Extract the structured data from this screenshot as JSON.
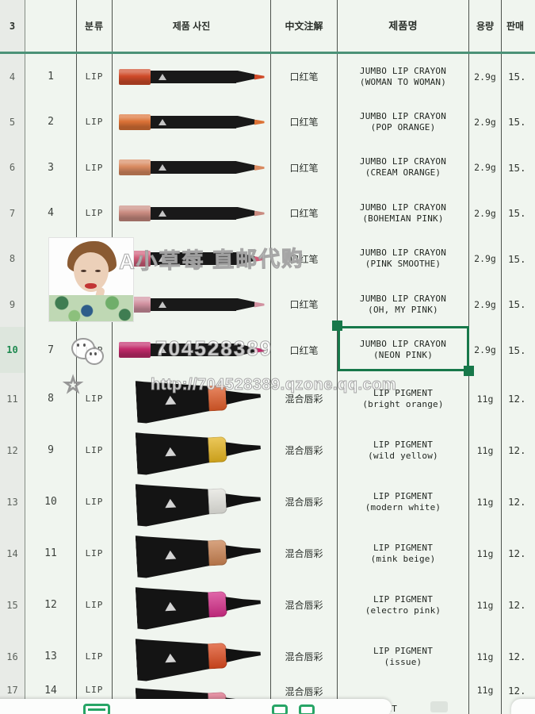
{
  "header": {
    "row_label": "3",
    "cols": {
      "index": "",
      "category": "분류",
      "photo": "제품 사진",
      "chinese_note": "中文注解",
      "product_name": "제품명",
      "weight": "용량",
      "price": "판매"
    }
  },
  "rows": [
    {
      "sheet_row": "4",
      "num": "1",
      "cat": "LIP",
      "img": "crayon",
      "color": "#cf4a28",
      "cn": "口红笔",
      "name1": "JUMBO LIP CRAYON",
      "name2": "(WOMAN TO WOMAN)",
      "weight": "2.9g",
      "price": "15."
    },
    {
      "sheet_row": "5",
      "num": "2",
      "cat": "LIP",
      "img": "crayon",
      "color": "#dc7236",
      "cn": "口红笔",
      "name1": "JUMBO LIP CRAYON",
      "name2": "(POP ORANGE)",
      "weight": "2.9g",
      "price": "15."
    },
    {
      "sheet_row": "6",
      "num": "3",
      "cat": "LIP",
      "img": "crayon",
      "color": "#d98a60",
      "cn": "口红笔",
      "name1": "JUMBO LIP CRAYON",
      "name2": "(CREAM ORANGE)",
      "weight": "2.9g",
      "price": "15."
    },
    {
      "sheet_row": "7",
      "num": "4",
      "cat": "LIP",
      "img": "crayon",
      "color": "#c98b80",
      "cn": "口红笔",
      "name1": "JUMBO LIP CRAYON",
      "name2": "(BOHEMIAN PINK)",
      "weight": "2.9g",
      "price": "15."
    },
    {
      "sheet_row": "8",
      "num": "5",
      "cat": "LIP",
      "img": "crayon",
      "color": "#d05c78",
      "cn": "口红笔",
      "name1": "JUMBO LIP CRAYON",
      "name2": "(PINK SMOOTHE)",
      "weight": "2.9g",
      "price": "15."
    },
    {
      "sheet_row": "9",
      "num": "6",
      "cat": "LIP",
      "img": "crayon",
      "color": "#d191a0",
      "cn": "口红笔",
      "name1": "JUMBO LIP CRAYON",
      "name2": "(OH, MY PINK)",
      "weight": "2.9g",
      "price": "15."
    },
    {
      "sheet_row": "10",
      "num": "7",
      "cat": "LIP",
      "img": "crayon",
      "color": "#c22a6a",
      "cn": "口红笔",
      "name1": "JUMBO LIP CRAYON",
      "name2": "(NEON PINK)",
      "weight": "2.9g",
      "price": "15.",
      "selected": true
    },
    {
      "sheet_row": "11",
      "num": "8",
      "cat": "LIP",
      "img": "tube",
      "color": "#df5a27",
      "cn": "混合唇彩",
      "name1": "LIP PIGMENT",
      "name2": "(bright orange)",
      "weight": "11g",
      "price": "12."
    },
    {
      "sheet_row": "12",
      "num": "9",
      "cat": "LIP",
      "img": "tube",
      "color": "#e4b31d",
      "cn": "混合唇彩",
      "name1": "LIP PIGMENT",
      "name2": "(wild yellow)",
      "weight": "11g",
      "price": "12."
    },
    {
      "sheet_row": "13",
      "num": "10",
      "cat": "LIP",
      "img": "tube",
      "color": "#e4e4de",
      "cn": "混合唇彩",
      "name1": "LIP PIGMENT",
      "name2": "(modern white)",
      "weight": "11g",
      "price": "12."
    },
    {
      "sheet_row": "14",
      "num": "11",
      "cat": "LIP",
      "img": "tube",
      "color": "#c98150",
      "cn": "混合唇彩",
      "name1": "LIP PIGMENT",
      "name2": "(mink beige)",
      "weight": "11g",
      "price": "12."
    },
    {
      "sheet_row": "15",
      "num": "12",
      "cat": "LIP",
      "img": "tube",
      "color": "#d42c88",
      "cn": "混合唇彩",
      "name1": "LIP PIGMENT",
      "name2": "(electro pink)",
      "weight": "11g",
      "price": "12."
    },
    {
      "sheet_row": "16",
      "num": "13",
      "cat": "LIP",
      "img": "tube",
      "color": "#dc4a1e",
      "cn": "混合唇彩",
      "name1": "LIP PIGMENT",
      "name2": "(issue)",
      "weight": "11g",
      "price": "12."
    },
    {
      "sheet_row": "17",
      "num": "14",
      "cat": "LIP",
      "img": "tube",
      "color": "#dd6e86",
      "cn": "混合唇彩",
      "name1": "LIP PIGMENT",
      "name2": "",
      "weight": "11g",
      "price": "12.",
      "cut": true
    }
  ],
  "selection": {
    "row_label": "10",
    "cell": "product_name"
  },
  "watermarks": {
    "brand": "A小草莓 直邮代购",
    "qq_number": "704528389",
    "url": "http://704528389.qzone.qq.com",
    "star": "☆",
    "wechat_icon": "wechat-icon"
  },
  "colors": {
    "selection_green": "#17784a",
    "toolbar_green": "#27a566",
    "frozen_divider": "#4b9277",
    "cell_bg": "#f0f5ef"
  },
  "toolbar": {
    "icons": [
      "keyboard-icon",
      "square-icon",
      "square-icon",
      "dim-icon"
    ]
  }
}
